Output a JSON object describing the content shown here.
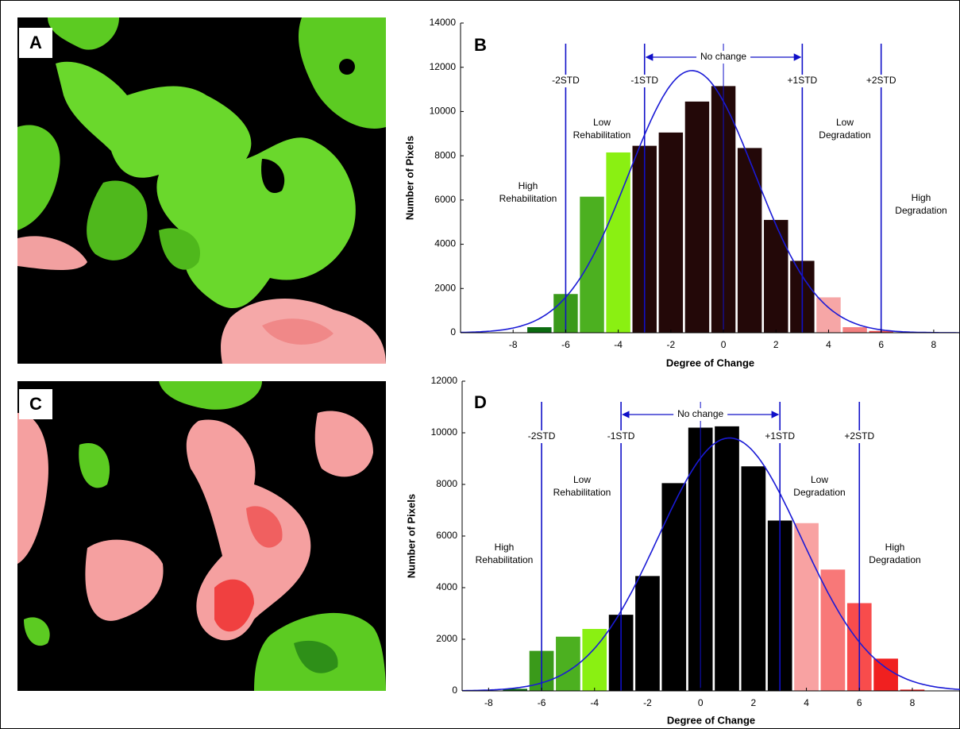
{
  "map_panels": [
    {
      "label": "A"
    },
    {
      "label": "C"
    }
  ],
  "chart_data": [
    {
      "type": "bar",
      "panel_label": "B",
      "xlabel": "Degree of Change",
      "ylabel": "Number of Pixels",
      "x": [
        -7,
        -6,
        -5,
        -4,
        -3,
        -2,
        -1,
        0,
        1,
        2,
        3,
        4,
        5,
        6
      ],
      "values": [
        250,
        1750,
        6150,
        8150,
        8450,
        9050,
        10450,
        11150,
        8350,
        5100,
        3250,
        1600,
        250,
        80
      ],
      "colors": [
        "#0b6b10",
        "#3a9a1a",
        "#4cb020",
        "#8af012",
        "#230808",
        "#230808",
        "#230808",
        "#230808",
        "#230808",
        "#230808",
        "#230808",
        "#f6a6a6",
        "#f38080",
        "#f05050"
      ],
      "xlim": [
        -10,
        9
      ],
      "ylim": [
        0,
        14000
      ],
      "xticks": [
        -8,
        -6,
        -4,
        -2,
        0,
        2,
        4,
        6,
        8
      ],
      "yticks": [
        0,
        2000,
        4000,
        6000,
        8000,
        10000,
        12000,
        14000
      ],
      "reference_lines": [
        {
          "x": -6,
          "label": "-2STD"
        },
        {
          "x": -3,
          "label": "-1STD"
        },
        {
          "x": 0
        },
        {
          "x": 3,
          "label": "+1STD"
        },
        {
          "x": 6,
          "label": "+2STD"
        }
      ],
      "span_label": "No change",
      "annotations": [
        {
          "lines": [
            "High",
            "Rehabilitation"
          ]
        },
        {
          "lines": [
            "Low",
            "Rehabilitation"
          ]
        },
        {
          "lines": [
            "Low",
            "Degradation"
          ]
        },
        {
          "lines": [
            "High",
            "Degradation"
          ]
        }
      ],
      "curve": {
        "mean": -1.2,
        "sd": 2.4,
        "peak": 11850,
        "color": "#1a1ad6"
      },
      "line_color": "#1010c8"
    },
    {
      "type": "bar",
      "panel_label": "D",
      "xlabel": "Degree of Change",
      "ylabel": "Number of Pixels",
      "x": [
        -7,
        -6,
        -5,
        -4,
        -3,
        -2,
        -1,
        0,
        1,
        2,
        3,
        4,
        5,
        6,
        7,
        8
      ],
      "values": [
        80,
        1550,
        2100,
        2400,
        2950,
        4450,
        8050,
        10200,
        10250,
        8700,
        6600,
        6500,
        4700,
        3400,
        1250,
        50
      ],
      "colors": [
        "#0b6b10",
        "#3a9a1a",
        "#4cb020",
        "#8af012",
        "#000000",
        "#000000",
        "#000000",
        "#000000",
        "#000000",
        "#000000",
        "#000000",
        "#f8a2a2",
        "#f87878",
        "#f84c4c",
        "#f02020",
        "#f02020"
      ],
      "xlim": [
        -9,
        9.8
      ],
      "ylim": [
        0,
        12000
      ],
      "xticks": [
        -8,
        -6,
        -4,
        -2,
        0,
        2,
        4,
        6,
        8
      ],
      "yticks": [
        0,
        2000,
        4000,
        6000,
        8000,
        10000,
        12000
      ],
      "reference_lines": [
        {
          "x": -6,
          "label": "-2STD"
        },
        {
          "x": -3,
          "label": "-1STD"
        },
        {
          "x": 0
        },
        {
          "x": 3,
          "label": "+1STD"
        },
        {
          "x": 6,
          "label": "+2STD"
        }
      ],
      "span_label": "No change",
      "annotations": [
        {
          "lines": [
            "High",
            "Rehabilitation"
          ]
        },
        {
          "lines": [
            "Low",
            "Rehabilitation"
          ]
        },
        {
          "lines": [
            "Low",
            "Degradation"
          ]
        },
        {
          "lines": [
            "High",
            "Degradation"
          ]
        }
      ],
      "curve": {
        "mean": 1.1,
        "sd": 2.7,
        "peak": 9800,
        "color": "#1a1ad6"
      },
      "line_color": "#1010c8"
    }
  ]
}
